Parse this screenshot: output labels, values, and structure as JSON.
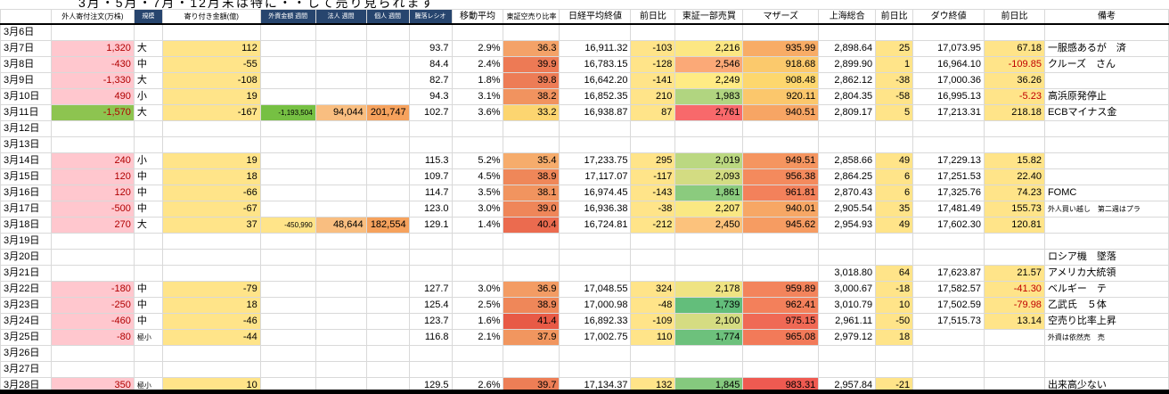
{
  "title": "3月・5月・7月・12月末は特に・・して売り見られます",
  "columns": [
    {
      "key": "foreign_order",
      "header": "外人寄付注文(万株)",
      "align": "right",
      "bg": "#FFC7CE",
      "fg": "#B00000",
      "hstyle": "plain",
      "hsmall": true
    },
    {
      "key": "size",
      "header": "規模",
      "align": "left",
      "hstyle": "dark"
    },
    {
      "key": "opening_amount",
      "header": "寄り付き金額(億)",
      "align": "right",
      "bg": "#FFE489",
      "hstyle": "plain",
      "hsmall": true
    },
    {
      "key": "foreign_weekly",
      "header": "外資金額 週間",
      "align": "right",
      "hstyle": "dark"
    },
    {
      "key": "corporate_weekly",
      "header": "法人 週間",
      "align": "right",
      "bg": "#F9BE80",
      "hstyle": "dark"
    },
    {
      "key": "individual_weekly",
      "header": "個人 週間",
      "align": "right",
      "bg": "#F6A25D",
      "hstyle": "dark"
    },
    {
      "key": "updown_ratio",
      "header": "騰落レシオ",
      "align": "right",
      "hstyle": "dark"
    },
    {
      "key": "moving_avg",
      "header": "移動平均",
      "align": "right",
      "hstyle": "plain"
    },
    {
      "key": "short_ratio",
      "header": "東証空売り比率",
      "align": "right",
      "hstyle": "plain",
      "hsmall": true
    },
    {
      "key": "nikkei_close",
      "header": "日経平均終値",
      "align": "right",
      "hstyle": "plain"
    },
    {
      "key": "nikkei_change",
      "header": "前日比",
      "align": "right",
      "bg": "#FFE489",
      "hstyle": "plain"
    },
    {
      "key": "tse_volume",
      "header": "東証一部売買",
      "align": "right",
      "hstyle": "plain"
    },
    {
      "key": "mothers",
      "header": "マザーズ",
      "align": "right",
      "hstyle": "plain"
    },
    {
      "key": "shanghai",
      "header": "上海総合",
      "align": "right",
      "hstyle": "plain"
    },
    {
      "key": "shanghai_change",
      "header": "前日比",
      "align": "right",
      "bg": "#FFE489",
      "hstyle": "plain"
    },
    {
      "key": "dow_close",
      "header": "ダウ終値",
      "align": "right",
      "hstyle": "plain"
    },
    {
      "key": "dow_change",
      "header": "前日比",
      "align": "right",
      "bg": "#FFE489",
      "hstyle": "plain"
    },
    {
      "key": "remarks",
      "header": "備考",
      "align": "left",
      "hstyle": "plain"
    }
  ],
  "rows": [
    {
      "date": "3月6日"
    },
    {
      "date": "3月7日",
      "v": [
        "1,320",
        "大",
        "112",
        "",
        "",
        "",
        "93.7",
        "2.9%",
        "36.3",
        "16,911.32",
        "-103",
        "2,216",
        "935.99",
        "2,898.64",
        "25",
        "17,073.95",
        "67.18",
        "一服感あるが　済"
      ],
      "bg": {
        "8": "#F4A268",
        "11": "#FCE783",
        "12": "#F8AC66"
      }
    },
    {
      "date": "3月8日",
      "v": [
        "-430",
        "中",
        "-55",
        "",
        "",
        "",
        "84.4",
        "2.4%",
        "39.9",
        "16,783.15",
        "-128",
        "2,546",
        "918.68",
        "2,899.90",
        "1",
        "16,964.10",
        "-109.85",
        "クルーズ　さん"
      ],
      "bg": {
        "8": "#ED7A55",
        "11": "#FBA977",
        "12": "#FBC96C"
      },
      "fg": {
        "16": "#C00000"
      }
    },
    {
      "date": "3月9日",
      "v": [
        "-1,330",
        "大",
        "-108",
        "",
        "",
        "",
        "82.7",
        "1.8%",
        "39.8",
        "16,642.20",
        "-141",
        "2,249",
        "908.48",
        "2,862.12",
        "-38",
        "17,000.36",
        "36.26",
        ""
      ],
      "bg": {
        "8": "#ED7C56",
        "11": "#FFEB84",
        "12": "#FDD76E"
      }
    },
    {
      "date": "3月10日",
      "v": [
        "490",
        "小",
        "19",
        "",
        "",
        "",
        "94.3",
        "3.1%",
        "38.2",
        "16,852.35",
        "210",
        "1,983",
        "920.11",
        "2,804.35",
        "-58",
        "16,995.13",
        "-5.23",
        "高浜原発停止"
      ],
      "bg": {
        "8": "#F1935F",
        "11": "#B1D580",
        "12": "#FBC76C"
      },
      "fg": {
        "16": "#C00000"
      }
    },
    {
      "date": "3月11日",
      "v": [
        "-1,570",
        "大",
        "-167",
        "-1,193,504",
        "94,044",
        "201,747",
        "102.7",
        "3.6%",
        "33.2",
        "16,938.87",
        "87",
        "2,761",
        "940.51",
        "2,809.17",
        "5",
        "17,213.31",
        "218.18",
        "ECBマイナス金"
      ],
      "bg": {
        "0": "#8DC450",
        "3": "#76C043",
        "8": "#FCD570",
        "11": "#F8696B",
        "12": "#F7A564"
      },
      "fs": {
        "3": "8px"
      }
    },
    {
      "date": "3月12日"
    },
    {
      "date": "3月13日"
    },
    {
      "date": "3月14日",
      "v": [
        "240",
        "小",
        "19",
        "",
        "",
        "",
        "115.3",
        "5.2%",
        "35.4",
        "17,233.75",
        "295",
        "2,019",
        "949.51",
        "2,858.66",
        "49",
        "17,229.13",
        "15.82",
        ""
      ],
      "bg": {
        "8": "#F6AC6C",
        "11": "#BBD881",
        "12": "#F59560"
      }
    },
    {
      "date": "3月15日",
      "v": [
        "120",
        "中",
        "18",
        "",
        "",
        "",
        "109.7",
        "4.5%",
        "38.9",
        "17,117.07",
        "-117",
        "2,093",
        "956.38",
        "2,864.25",
        "6",
        "17,251.53",
        "22.40",
        ""
      ],
      "bg": {
        "8": "#EF8759",
        "11": "#D3DC82",
        "12": "#F48A5D"
      }
    },
    {
      "date": "3月16日",
      "v": [
        "120",
        "中",
        "-66",
        "",
        "",
        "",
        "114.7",
        "3.5%",
        "38.1",
        "16,974.45",
        "-143",
        "1,861",
        "961.81",
        "2,870.43",
        "6",
        "17,325.76",
        "74.23",
        "FOMC"
      ],
      "bg": {
        "8": "#F1945F",
        "11": "#8BCB7E",
        "12": "#F3815B"
      }
    },
    {
      "date": "3月17日",
      "v": [
        "-500",
        "中",
        "-67",
        "",
        "",
        "",
        "123.0",
        "3.0%",
        "39.0",
        "16,936.38",
        "-38",
        "2,207",
        "940.01",
        "2,905.54",
        "35",
        "17,481.49",
        "155.73",
        "外人買い越し　第二週はプラ"
      ],
      "bg": {
        "8": "#EF8659",
        "11": "#FAE883",
        "12": "#F7A765"
      },
      "fs": {
        "17": "8px"
      }
    },
    {
      "date": "3月18日",
      "v": [
        "270",
        "大",
        "37",
        "-450,990",
        "48,644",
        "182,554",
        "129.1",
        "1.4%",
        "40.4",
        "16,724.81",
        "-212",
        "2,450",
        "945.62",
        "2,954.93",
        "49",
        "17,602.30",
        "120.81",
        ""
      ],
      "bg": {
        "3": "#FFE489",
        "8": "#EB6B4F",
        "11": "#FCC27C",
        "12": "#F69C62"
      },
      "fs": {
        "3": "8px"
      }
    },
    {
      "date": "3月19日"
    },
    {
      "date": "3月20日",
      "v": [
        "",
        "",
        "",
        "",
        "",
        "",
        "",
        "",
        "",
        "",
        "",
        "",
        "",
        "",
        "",
        "",
        "",
        "ロシア機　墜落"
      ]
    },
    {
      "date": "3月21日",
      "v": [
        "",
        "",
        "",
        "",
        "",
        "",
        "",
        "",
        "",
        "",
        "",
        "",
        "",
        "3,018.80",
        "64",
        "17,623.87",
        "21.57",
        "アメリカ大統領"
      ]
    },
    {
      "date": "3月22日",
      "v": [
        "-180",
        "中",
        "-79",
        "",
        "",
        "",
        "127.7",
        "3.0%",
        "36.9",
        "17,048.55",
        "324",
        "2,178",
        "959.89",
        "3,000.67",
        "-18",
        "17,582.57",
        "-41.30",
        "ベルギー　テ"
      ],
      "bg": {
        "8": "#F39C64",
        "11": "#EFE383",
        "12": "#F3845C"
      },
      "fg": {
        "16": "#C00000"
      }
    },
    {
      "date": "3月23日",
      "v": [
        "-250",
        "中",
        "18",
        "",
        "",
        "",
        "125.4",
        "2.5%",
        "38.9",
        "17,000.98",
        "-48",
        "1,739",
        "962.41",
        "3,010.79",
        "10",
        "17,502.59",
        "-79.98",
        "乙武氏　５体"
      ],
      "bg": {
        "8": "#EF8759",
        "11": "#63BE7B",
        "12": "#F3805B"
      },
      "fg": {
        "16": "#C00000"
      }
    },
    {
      "date": "3月24日",
      "v": [
        "-460",
        "中",
        "-46",
        "",
        "",
        "",
        "123.7",
        "1.6%",
        "41.4",
        "16,892.33",
        "-109",
        "2,100",
        "975.15",
        "2,961.11",
        "-50",
        "17,515.73",
        "13.14",
        "空売り比率上昇"
      ],
      "bg": {
        "8": "#E85A46",
        "11": "#D5DC82",
        "12": "#F06955"
      }
    },
    {
      "date": "3月25日",
      "v": [
        "-80",
        "極小",
        "-44",
        "",
        "",
        "",
        "116.8",
        "2.1%",
        "37.9",
        "17,002.75",
        "110",
        "1,774",
        "965.08",
        "2,979.12",
        "18",
        "",
        "",
        "外資は依然売　売"
      ],
      "bg": {
        "8": "#F1965F",
        "11": "#6DC17C",
        "12": "#F27A59"
      },
      "fs": {
        "17": "8px"
      }
    },
    {
      "date": "3月26日"
    },
    {
      "date": "3月27日"
    },
    {
      "date": "3月28日",
      "v": [
        "350",
        "極小",
        "10",
        "",
        "",
        "",
        "129.5",
        "2.6%",
        "39.7",
        "17,134.37",
        "132",
        "1,845",
        "983.31",
        "2,957.84",
        "-21",
        "",
        "",
        "出来高少ない"
      ],
      "bg": {
        "8": "#ED7E56",
        "11": "#85C97E",
        "12": "#EF5A51"
      }
    }
  ]
}
